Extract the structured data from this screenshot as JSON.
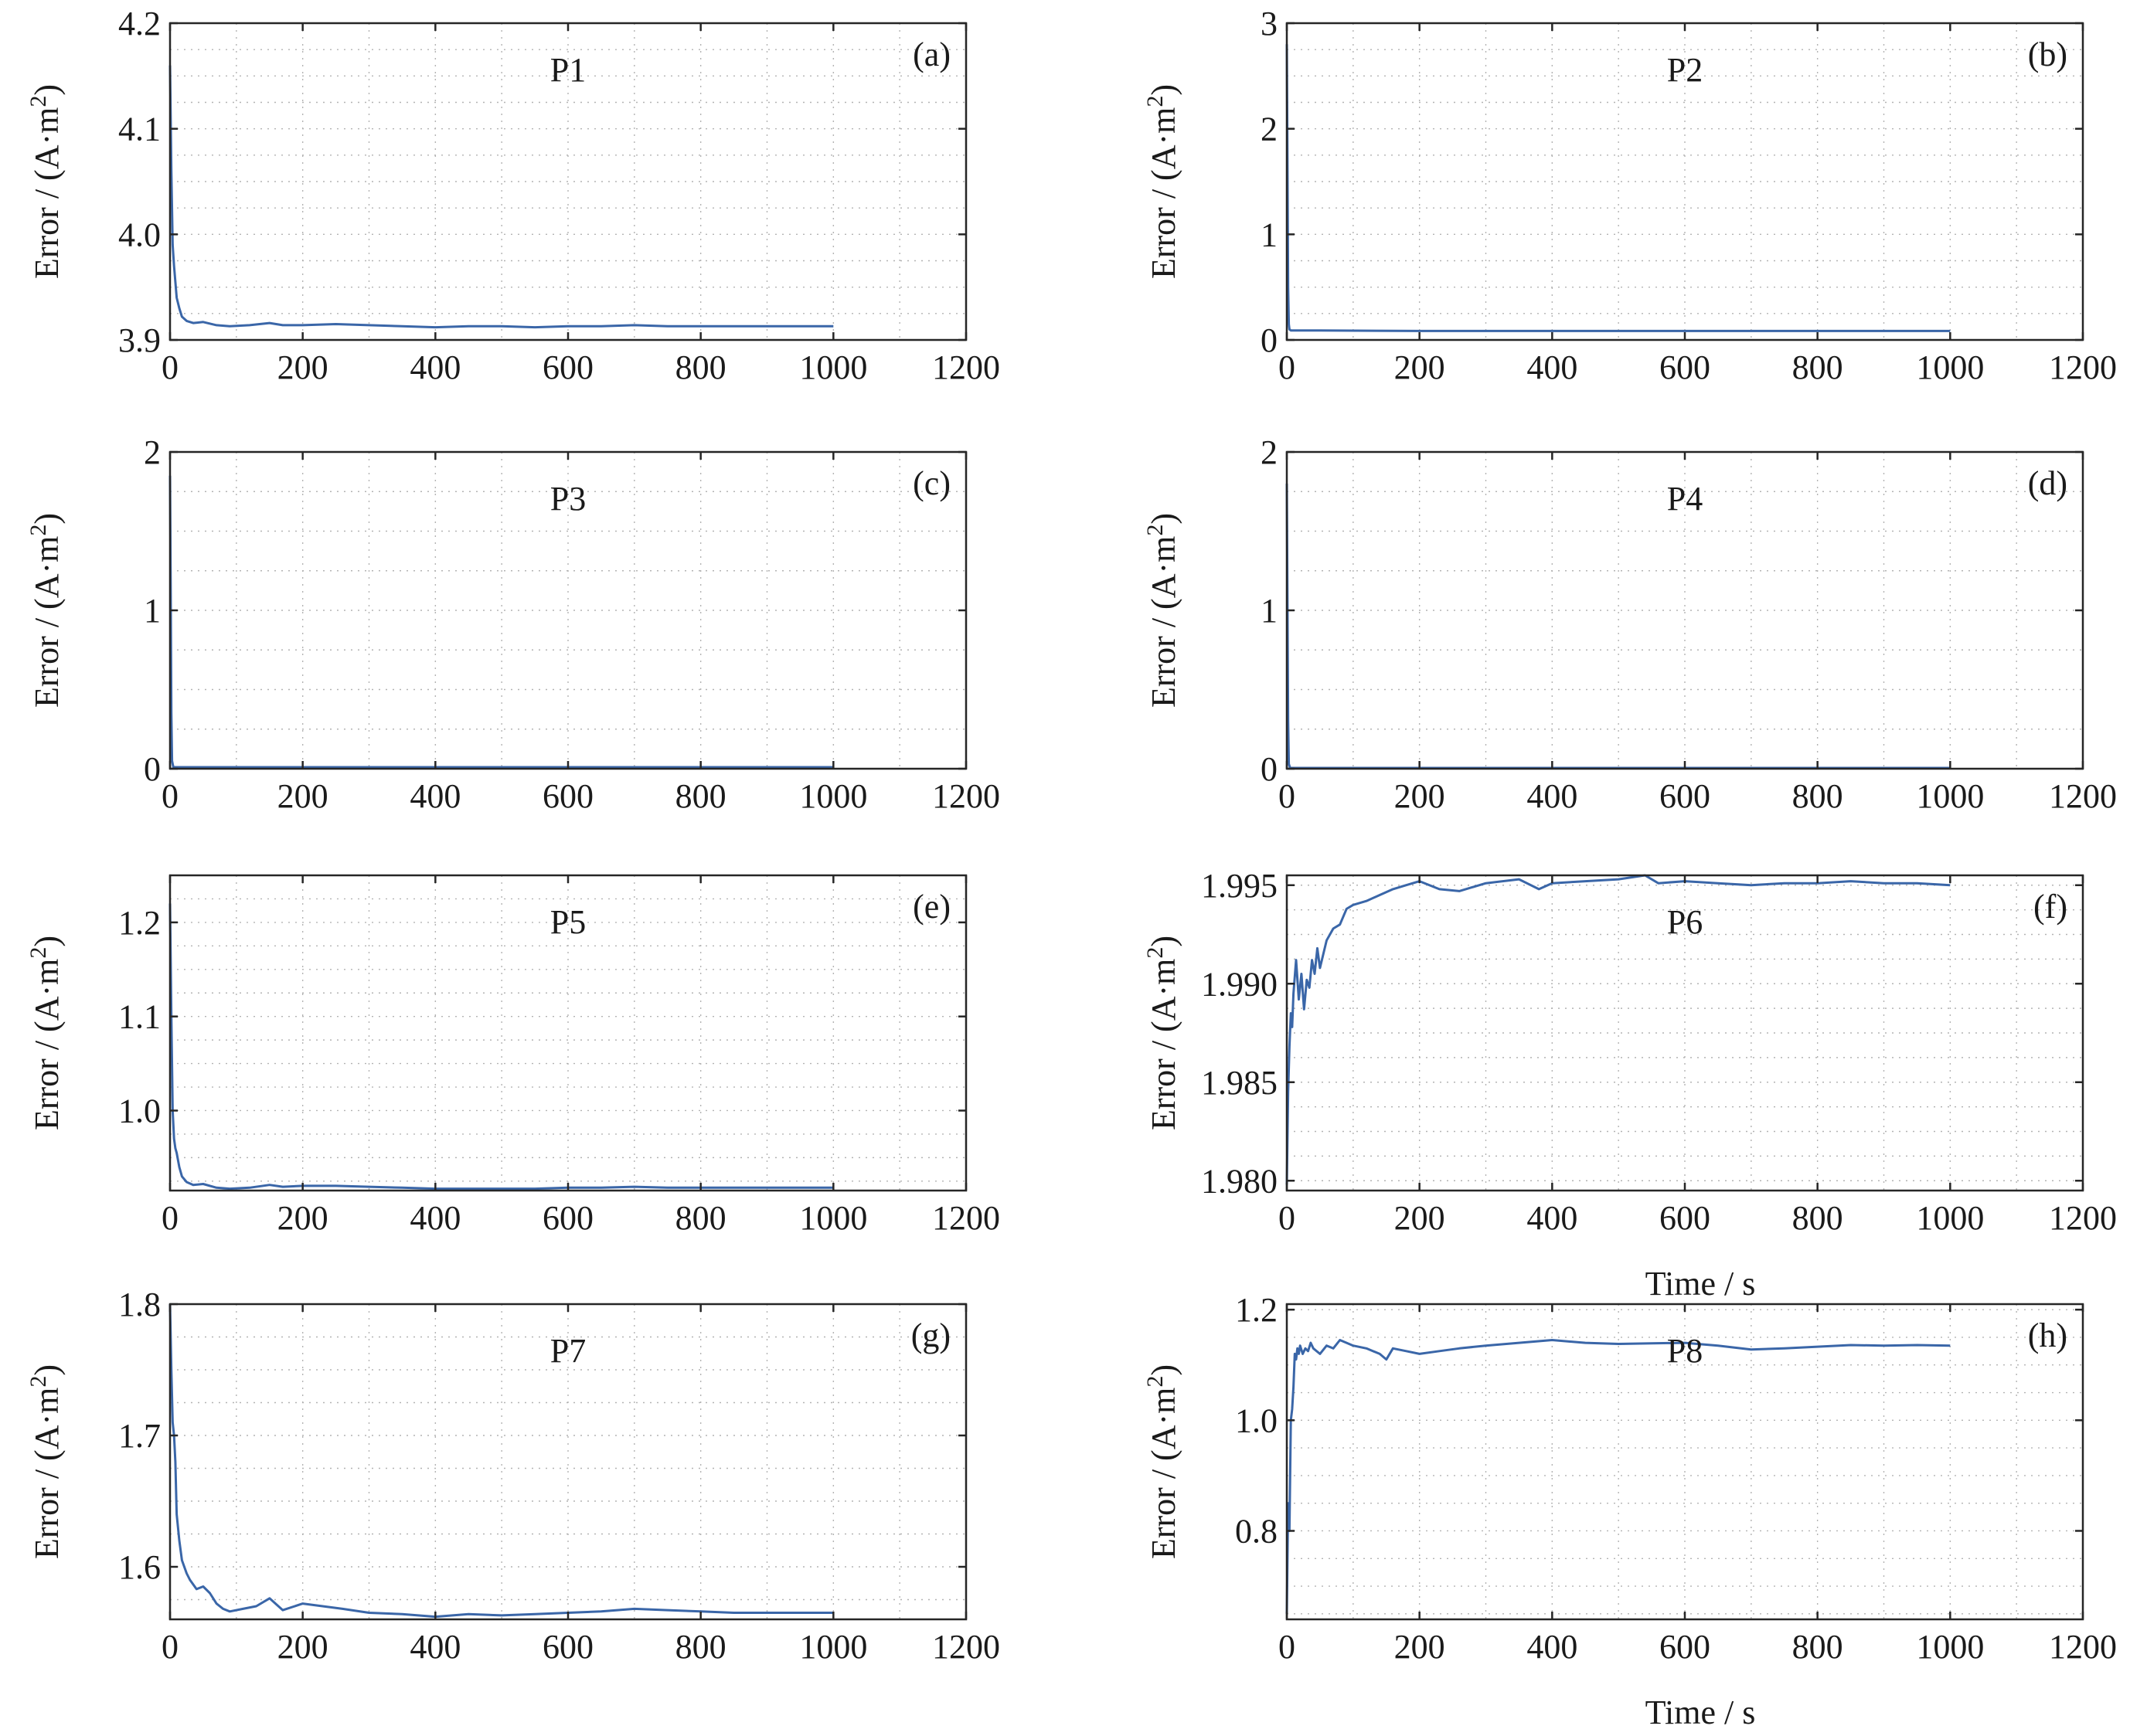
{
  "chart_data": [
    {
      "id": "a",
      "type": "line",
      "panel_label": "(a)",
      "title": "P1",
      "xlabel": "",
      "ylabel": "Error / (A·m2)",
      "xlim": [
        0,
        1200
      ],
      "ylim": [
        3.9,
        4.2
      ],
      "xticks": [
        0,
        200,
        400,
        600,
        800,
        1000,
        1200
      ],
      "xtick_labels": [
        "0",
        "200",
        "400",
        "600",
        "800",
        "1000",
        "1200"
      ],
      "yticks": [
        3.9,
        4.0,
        4.1,
        4.2
      ],
      "ytick_labels": [
        "3.9",
        "4.0",
        "4.1",
        "4.2"
      ],
      "grid": true,
      "color": "#3a66a8",
      "x": [
        0,
        2,
        4,
        6,
        8,
        10,
        14,
        18,
        25,
        35,
        50,
        70,
        90,
        120,
        150,
        170,
        200,
        250,
        300,
        350,
        400,
        450,
        500,
        550,
        600,
        650,
        700,
        750,
        800,
        850,
        900,
        950,
        1000
      ],
      "y": [
        4.16,
        4.06,
        3.99,
        3.97,
        3.955,
        3.94,
        3.93,
        3.922,
        3.918,
        3.916,
        3.917,
        3.914,
        3.913,
        3.914,
        3.916,
        3.914,
        3.914,
        3.915,
        3.914,
        3.913,
        3.912,
        3.913,
        3.913,
        3.912,
        3.913,
        3.913,
        3.914,
        3.913,
        3.913,
        3.913,
        3.913,
        3.913,
        3.913
      ]
    },
    {
      "id": "b",
      "type": "line",
      "panel_label": "(b)",
      "title": "P2",
      "xlabel": "",
      "ylabel": "Error / (A·m2)",
      "xlim": [
        0,
        1200
      ],
      "ylim": [
        0,
        3
      ],
      "xticks": [
        0,
        200,
        400,
        600,
        800,
        1000,
        1200
      ],
      "xtick_labels": [
        "0",
        "200",
        "400",
        "600",
        "800",
        "1000",
        "1200"
      ],
      "yticks": [
        0,
        1,
        2,
        3
      ],
      "ytick_labels": [
        "0",
        "1",
        "2",
        "3"
      ],
      "grid": true,
      "color": "#3a66a8",
      "x": [
        0,
        1,
        2,
        3,
        4,
        6,
        10,
        50,
        200,
        400,
        600,
        800,
        1000
      ],
      "y": [
        2.8,
        1.6,
        0.5,
        0.15,
        0.1,
        0.09,
        0.09,
        0.09,
        0.085,
        0.085,
        0.085,
        0.085,
        0.085
      ]
    },
    {
      "id": "c",
      "type": "line",
      "panel_label": "(c)",
      "title": "P3",
      "xlabel": "",
      "ylabel": "Error / (A·m2)",
      "xlim": [
        0,
        1200
      ],
      "ylim": [
        0,
        2
      ],
      "xticks": [
        0,
        200,
        400,
        600,
        800,
        1000,
        1200
      ],
      "xtick_labels": [
        "0",
        "200",
        "400",
        "600",
        "800",
        "1000",
        "1200"
      ],
      "yticks": [
        0,
        1,
        2
      ],
      "ytick_labels": [
        "0",
        "1",
        "2"
      ],
      "grid": true,
      "color": "#3a66a8",
      "x": [
        0,
        1,
        2,
        3,
        5,
        10,
        50,
        200,
        400,
        600,
        800,
        1000
      ],
      "y": [
        1.85,
        1.1,
        0.35,
        0.05,
        0.01,
        0.01,
        0.01,
        0.01,
        0.01,
        0.01,
        0.01,
        0.01
      ]
    },
    {
      "id": "d",
      "type": "line",
      "panel_label": "(d)",
      "title": "P4",
      "xlabel": "",
      "ylabel": "Error / (A·m2)",
      "xlim": [
        0,
        1200
      ],
      "ylim": [
        0,
        2
      ],
      "xticks": [
        0,
        200,
        400,
        600,
        800,
        1000,
        1200
      ],
      "xtick_labels": [
        "0",
        "200",
        "400",
        "600",
        "800",
        "1000",
        "1200"
      ],
      "yticks": [
        0,
        1,
        2
      ],
      "ytick_labels": [
        "0",
        "1",
        "2"
      ],
      "grid": true,
      "color": "#3a66a8",
      "x": [
        0,
        1,
        2,
        3,
        5,
        10,
        50,
        200,
        400,
        600,
        800,
        1000
      ],
      "y": [
        1.8,
        1.0,
        0.3,
        0.03,
        0.005,
        0.005,
        0.005,
        0.005,
        0.005,
        0.005,
        0.005,
        0.005
      ]
    },
    {
      "id": "e",
      "type": "line",
      "panel_label": "(e)",
      "title": "P5",
      "xlabel": "",
      "ylabel": "Error / (A·m2)",
      "xlim": [
        0,
        1200
      ],
      "ylim": [
        0.915,
        1.25
      ],
      "xticks": [
        0,
        200,
        400,
        600,
        800,
        1000,
        1200
      ],
      "xtick_labels": [
        "0",
        "200",
        "400",
        "600",
        "800",
        "1000",
        "1200"
      ],
      "yticks": [
        1.0,
        1.1,
        1.2
      ],
      "ytick_labels": [
        "1.0",
        "1.1",
        "1.2"
      ],
      "grid": true,
      "color": "#3a66a8",
      "x": [
        0,
        2,
        4,
        6,
        8,
        10,
        14,
        18,
        25,
        35,
        50,
        70,
        90,
        120,
        150,
        170,
        200,
        250,
        300,
        350,
        400,
        450,
        500,
        550,
        600,
        650,
        700,
        750,
        800,
        850,
        900,
        950,
        1000
      ],
      "y": [
        1.22,
        1.1,
        1.0,
        0.97,
        0.96,
        0.955,
        0.94,
        0.93,
        0.924,
        0.921,
        0.922,
        0.918,
        0.917,
        0.918,
        0.921,
        0.919,
        0.92,
        0.92,
        0.919,
        0.918,
        0.917,
        0.917,
        0.917,
        0.917,
        0.918,
        0.918,
        0.919,
        0.918,
        0.918,
        0.918,
        0.918,
        0.918,
        0.918
      ]
    },
    {
      "id": "f",
      "type": "line",
      "panel_label": "(f)",
      "title": "P6",
      "xlabel": "Time / s",
      "ylabel": "Error / (A·m2)",
      "xlim": [
        0,
        1200
      ],
      "ylim": [
        1.9795,
        1.9955
      ],
      "xticks": [
        0,
        200,
        400,
        600,
        800,
        1000,
        1200
      ],
      "xtick_labels": [
        "0",
        "200",
        "400",
        "600",
        "800",
        "1000",
        "1200"
      ],
      "yticks": [
        1.98,
        1.985,
        1.99,
        1.995
      ],
      "ytick_labels": [
        "1.980",
        "1.985",
        "1.990",
        "1.995"
      ],
      "grid": true,
      "color": "#3a66a8",
      "x": [
        0,
        2,
        4,
        6,
        8,
        10,
        14,
        18,
        22,
        26,
        30,
        34,
        38,
        42,
        46,
        50,
        55,
        60,
        70,
        80,
        90,
        100,
        120,
        140,
        160,
        180,
        200,
        230,
        260,
        300,
        350,
        380,
        400,
        450,
        500,
        540,
        560,
        600,
        650,
        700,
        750,
        800,
        850,
        900,
        950,
        1000
      ],
      "y": [
        1.9798,
        1.9845,
        1.9868,
        1.9885,
        1.9878,
        1.9895,
        1.9912,
        1.9892,
        1.9905,
        1.9887,
        1.9902,
        1.9898,
        1.9912,
        1.9905,
        1.9918,
        1.9908,
        1.9915,
        1.9922,
        1.9928,
        1.993,
        1.9938,
        1.994,
        1.9942,
        1.9945,
        1.9948,
        1.995,
        1.9952,
        1.9948,
        1.9947,
        1.9951,
        1.9953,
        1.9948,
        1.9951,
        1.9952,
        1.9953,
        1.9955,
        1.9951,
        1.9952,
        1.9951,
        1.995,
        1.9951,
        1.9951,
        1.9952,
        1.9951,
        1.9951,
        1.995
      ]
    },
    {
      "id": "g",
      "type": "line",
      "panel_label": "(g)",
      "title": "P7",
      "xlabel": "",
      "ylabel": "Error / (A·m2)",
      "xlim": [
        0,
        1200
      ],
      "ylim": [
        1.56,
        1.8
      ],
      "xticks": [
        0,
        200,
        400,
        600,
        800,
        1000,
        1200
      ],
      "xtick_labels": [
        "0",
        "200",
        "400",
        "600",
        "800",
        "1000",
        "1200"
      ],
      "yticks": [
        1.6,
        1.7,
        1.8
      ],
      "ytick_labels": [
        "1.6",
        "1.7",
        "1.8"
      ],
      "grid": true,
      "color": "#3a66a8",
      "x": [
        0,
        2,
        4,
        6,
        8,
        10,
        14,
        18,
        25,
        30,
        40,
        50,
        60,
        70,
        80,
        90,
        110,
        130,
        150,
        170,
        200,
        230,
        260,
        300,
        350,
        400,
        450,
        500,
        550,
        600,
        650,
        700,
        750,
        800,
        850,
        900,
        950,
        1000
      ],
      "y": [
        1.8,
        1.75,
        1.71,
        1.7,
        1.68,
        1.64,
        1.62,
        1.605,
        1.595,
        1.59,
        1.583,
        1.585,
        1.58,
        1.572,
        1.568,
        1.566,
        1.568,
        1.57,
        1.576,
        1.567,
        1.572,
        1.57,
        1.568,
        1.565,
        1.564,
        1.562,
        1.564,
        1.563,
        1.564,
        1.565,
        1.566,
        1.568,
        1.567,
        1.566,
        1.565,
        1.565,
        1.565,
        1.565
      ]
    },
    {
      "id": "h",
      "type": "line",
      "panel_label": "(h)",
      "title": "P8",
      "xlabel": "Time / s",
      "ylabel": "Error / (A·m2)",
      "xlim": [
        0,
        1200
      ],
      "ylim": [
        0.64,
        1.21
      ],
      "xticks": [
        0,
        200,
        400,
        600,
        800,
        1000,
        1200
      ],
      "xtick_labels": [
        "0",
        "200",
        "400",
        "600",
        "800",
        "1000",
        "1200"
      ],
      "yticks": [
        0.8,
        1.0,
        1.2
      ],
      "ytick_labels": [
        "0.8",
        "1.0",
        "1.2"
      ],
      "grid": true,
      "color": "#3a66a8",
      "x": [
        0,
        2,
        4,
        6,
        8,
        10,
        12,
        14,
        16,
        18,
        20,
        24,
        28,
        32,
        36,
        40,
        50,
        60,
        70,
        80,
        90,
        100,
        120,
        140,
        150,
        160,
        180,
        200,
        230,
        260,
        300,
        350,
        400,
        450,
        500,
        550,
        600,
        650,
        700,
        750,
        800,
        850,
        900,
        950,
        1000
      ],
      "y": [
        0.65,
        0.85,
        0.8,
        1.0,
        1.02,
        1.06,
        1.12,
        1.11,
        1.13,
        1.12,
        1.135,
        1.12,
        1.13,
        1.125,
        1.14,
        1.13,
        1.12,
        1.135,
        1.13,
        1.145,
        1.14,
        1.135,
        1.13,
        1.12,
        1.11,
        1.13,
        1.125,
        1.12,
        1.125,
        1.13,
        1.135,
        1.14,
        1.145,
        1.14,
        1.138,
        1.139,
        1.14,
        1.135,
        1.128,
        1.13,
        1.133,
        1.136,
        1.135,
        1.136,
        1.135
      ]
    }
  ]
}
